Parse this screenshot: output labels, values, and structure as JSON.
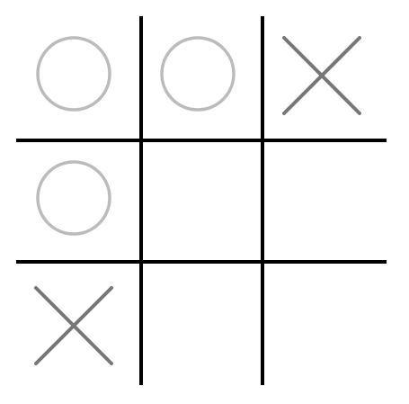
{
  "board": [
    [
      "O",
      "O",
      "X"
    ],
    [
      "O",
      null,
      null
    ],
    [
      "X",
      null,
      null
    ]
  ]
}
